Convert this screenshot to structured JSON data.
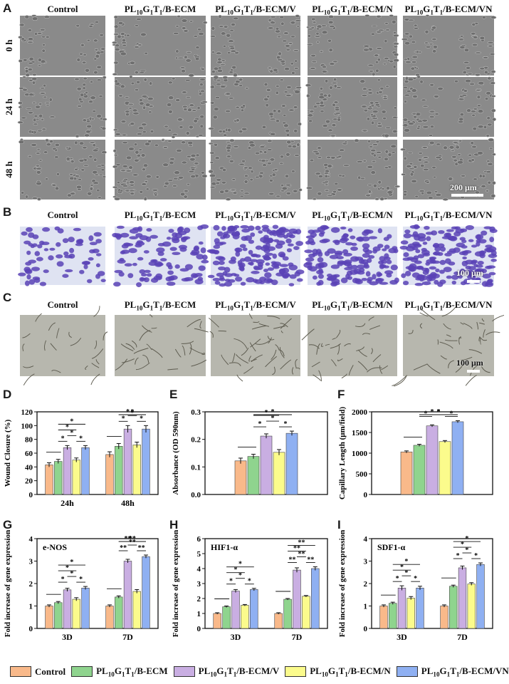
{
  "panel_labels": [
    "A",
    "B",
    "C",
    "D",
    "E",
    "F",
    "G",
    "H",
    "I"
  ],
  "columns": [
    "Control",
    "PL10G1T1/B-ECM",
    "PL10G1T1/B-ECM/V",
    "PL10G1T1/B-ECM/N",
    "PL10G1T1/B-ECM/VN"
  ],
  "rows_A": [
    "0 h",
    "24 h",
    "48 h"
  ],
  "scalebars": {
    "A": "200 μm",
    "B": "100 μm",
    "C": "100 μm"
  },
  "colors": [
    "#f9b98a",
    "#8fd48e",
    "#c9aee2",
    "#fbfb8c",
    "#8fb0f2"
  ],
  "legend": [
    "Control",
    "PL10G1T1/B-ECM",
    "PL10G1T1/B-ECM/V",
    "PL10G1T1/B-ECM/N",
    "PL10G1T1/B-ECM/VN"
  ],
  "chart_data": [
    {
      "panel": "D",
      "type": "bar",
      "ylabel": "Wound Closure (%)",
      "xlabel": "",
      "categories": [
        "24h",
        "48h"
      ],
      "ylim": [
        0,
        120
      ],
      "yticks": [
        0,
        20,
        40,
        60,
        80,
        100,
        120
      ],
      "series": [
        {
          "name": "Control",
          "values": [
            43,
            58
          ],
          "err": [
            3,
            4
          ]
        },
        {
          "name": "PL10G1T1/B-ECM",
          "values": [
            48,
            70
          ],
          "err": [
            3,
            4
          ]
        },
        {
          "name": "PL10G1T1/B-ECM/V",
          "values": [
            68,
            95
          ],
          "err": [
            3,
            5
          ]
        },
        {
          "name": "PL10G1T1/B-ECM/N",
          "values": [
            50,
            72
          ],
          "err": [
            3,
            4
          ]
        },
        {
          "name": "PL10G1T1/B-ECM/VN",
          "values": [
            68,
            95
          ],
          "err": [
            3,
            5
          ]
        }
      ],
      "sig": "*"
    },
    {
      "panel": "E",
      "type": "bar",
      "ylabel": "Absorbance (OD 590nm)",
      "xlabel": "",
      "categories": [
        ""
      ],
      "ylim": [
        0,
        0.3
      ],
      "yticks": [
        0.0,
        0.1,
        0.2,
        0.3
      ],
      "series": [
        {
          "name": "Control",
          "values": [
            0.122
          ],
          "err": [
            0.01
          ]
        },
        {
          "name": "PL10G1T1/B-ECM",
          "values": [
            0.138
          ],
          "err": [
            0.008
          ]
        },
        {
          "name": "PL10G1T1/B-ECM/V",
          "values": [
            0.212
          ],
          "err": [
            0.008
          ]
        },
        {
          "name": "PL10G1T1/B-ECM/N",
          "values": [
            0.153
          ],
          "err": [
            0.01
          ]
        },
        {
          "name": "PL10G1T1/B-ECM/VN",
          "values": [
            0.222
          ],
          "err": [
            0.008
          ]
        }
      ],
      "sig": "*"
    },
    {
      "panel": "F",
      "type": "bar",
      "ylabel": "Capillary Length (μm/field)",
      "xlabel": "",
      "categories": [
        ""
      ],
      "ylim": [
        0,
        2000
      ],
      "yticks": [
        0,
        500,
        1000,
        1500,
        2000
      ],
      "series": [
        {
          "name": "Control",
          "values": [
            1030
          ],
          "err": [
            25
          ]
        },
        {
          "name": "PL10G1T1/B-ECM",
          "values": [
            1190
          ],
          "err": [
            25
          ]
        },
        {
          "name": "PL10G1T1/B-ECM/V",
          "values": [
            1660
          ],
          "err": [
            25
          ]
        },
        {
          "name": "PL10G1T1/B-ECM/N",
          "values": [
            1280
          ],
          "err": [
            25
          ]
        },
        {
          "name": "PL10G1T1/B-ECM/VN",
          "values": [
            1760
          ],
          "err": [
            25
          ]
        }
      ],
      "sig": "*"
    },
    {
      "panel": "G",
      "type": "bar",
      "title": "e-NOS",
      "ylabel": "Fold increase of gene expression",
      "xlabel": "",
      "categories": [
        "3D",
        "7D"
      ],
      "ylim": [
        0,
        4
      ],
      "yticks": [
        0,
        1,
        2,
        3,
        4
      ],
      "series": [
        {
          "name": "Control",
          "values": [
            1.0,
            1.0
          ],
          "err": [
            0.05,
            0.05
          ]
        },
        {
          "name": "PL10G1T1/B-ECM",
          "values": [
            1.15,
            1.4
          ],
          "err": [
            0.05,
            0.05
          ]
        },
        {
          "name": "PL10G1T1/B-ECM/V",
          "values": [
            1.72,
            3.0
          ],
          "err": [
            0.07,
            0.08
          ]
        },
        {
          "name": "PL10G1T1/B-ECM/N",
          "values": [
            1.3,
            1.65
          ],
          "err": [
            0.07,
            0.08
          ]
        },
        {
          "name": "PL10G1T1/B-ECM/VN",
          "values": [
            1.8,
            3.2
          ],
          "err": [
            0.07,
            0.07
          ]
        }
      ],
      "sig": [
        "*",
        "**"
      ]
    },
    {
      "panel": "H",
      "type": "bar",
      "title": "HIF1-α",
      "ylabel": "Fold increase of gene expression",
      "xlabel": "",
      "categories": [
        "3D",
        "7D"
      ],
      "ylim": [
        0,
        6
      ],
      "yticks": [
        0,
        1,
        2,
        3,
        4,
        5,
        6
      ],
      "series": [
        {
          "name": "Control",
          "values": [
            1.0,
            1.0
          ],
          "err": [
            0.05,
            0.05
          ]
        },
        {
          "name": "PL10G1T1/B-ECM",
          "values": [
            1.45,
            1.95
          ],
          "err": [
            0.05,
            0.05
          ]
        },
        {
          "name": "PL10G1T1/B-ECM/V",
          "values": [
            2.5,
            3.9
          ],
          "err": [
            0.1,
            0.15
          ]
        },
        {
          "name": "PL10G1T1/B-ECM/N",
          "values": [
            1.55,
            2.15
          ],
          "err": [
            0.05,
            0.05
          ]
        },
        {
          "name": "PL10G1T1/B-ECM/VN",
          "values": [
            2.6,
            4.0
          ],
          "err": [
            0.08,
            0.12
          ]
        }
      ],
      "sig": [
        "*",
        "**"
      ]
    },
    {
      "panel": "I",
      "type": "bar",
      "title": "SDF1-α",
      "ylabel": "Fold increase of gene expression",
      "xlabel": "",
      "categories": [
        "3D",
        "7D"
      ],
      "ylim": [
        0,
        4
      ],
      "yticks": [
        0,
        1,
        2,
        3,
        4
      ],
      "series": [
        {
          "name": "Control",
          "values": [
            1.0,
            1.0
          ],
          "err": [
            0.05,
            0.05
          ]
        },
        {
          "name": "PL10G1T1/B-ECM",
          "values": [
            1.12,
            1.88
          ],
          "err": [
            0.05,
            0.05
          ]
        },
        {
          "name": "PL10G1T1/B-ECM/V",
          "values": [
            1.8,
            2.7
          ],
          "err": [
            0.1,
            0.08
          ]
        },
        {
          "name": "PL10G1T1/B-ECM/N",
          "values": [
            1.35,
            1.98
          ],
          "err": [
            0.07,
            0.06
          ]
        },
        {
          "name": "PL10G1T1/B-ECM/VN",
          "values": [
            1.8,
            2.85
          ],
          "err": [
            0.08,
            0.07
          ]
        }
      ],
      "sig": [
        "*",
        "*"
      ]
    }
  ]
}
